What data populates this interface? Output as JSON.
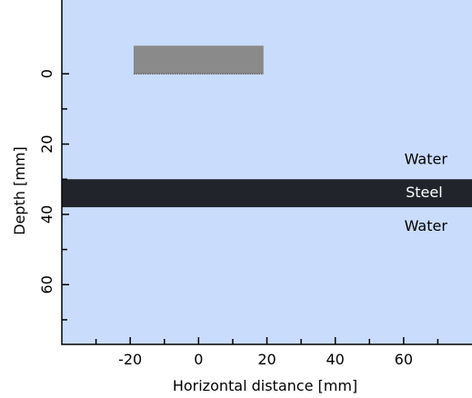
{
  "chart_data": {
    "type": "diagram",
    "title": "",
    "xlabel": "Horizontal distance [mm]",
    "ylabel": "Depth [mm]",
    "xlim": [
      -40,
      80
    ],
    "ylim": [
      77,
      -21
    ],
    "x_ticks_major": [
      -20,
      0,
      20,
      40,
      60
    ],
    "x_ticks_minor": [
      -30,
      -10,
      10,
      30,
      50,
      70
    ],
    "y_ticks_major": [
      0,
      20,
      40,
      60
    ],
    "y_ticks_minor": [
      10,
      30,
      50,
      70
    ],
    "background_color": "#c9dcfb",
    "probe": {
      "x_start": -19,
      "x_end": 19,
      "depth_top": -8,
      "depth_bottom": 0,
      "color": "#8a8a8a"
    },
    "layers": [
      {
        "name": "Water",
        "depth_top": -21,
        "depth_bottom": 30,
        "color": "#c9dcfb"
      },
      {
        "name": "Steel",
        "depth_top": 30,
        "depth_bottom": 38,
        "color": "#21252b"
      },
      {
        "name": "Water",
        "depth_top": 38,
        "depth_bottom": 77,
        "color": "#c9dcfb"
      }
    ],
    "region_labels": [
      {
        "text": "Water",
        "x": 66.5,
        "depth": 24.5,
        "color": "#000000"
      },
      {
        "text": "Steel",
        "x": 66,
        "depth": 34,
        "color": "#ffffff"
      },
      {
        "text": "Water",
        "x": 66.5,
        "depth": 43.5,
        "color": "#000000"
      }
    ]
  }
}
